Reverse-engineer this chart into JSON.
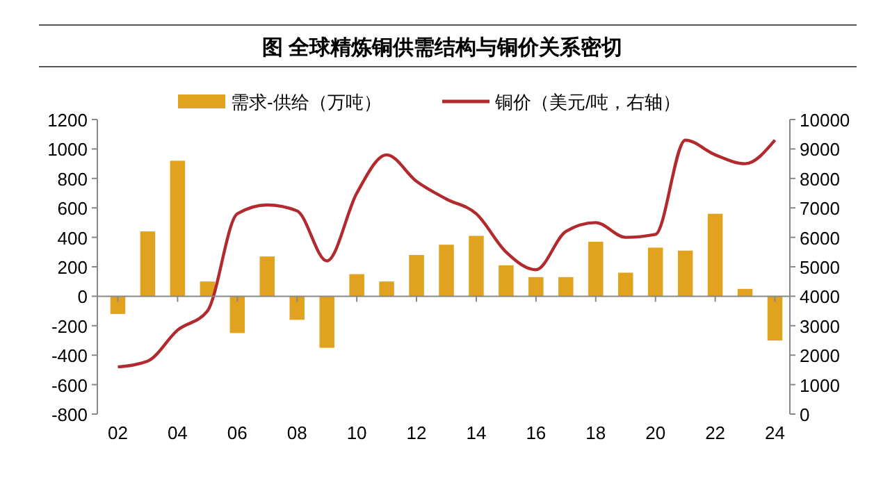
{
  "chart_data": {
    "type": "bar",
    "title": "图  全球精炼铜供需结构与铜价关系密切",
    "categories": [
      "02",
      null,
      "04",
      null,
      "06",
      null,
      "08",
      null,
      "10",
      null,
      "12",
      null,
      "14",
      null,
      "16",
      null,
      "18",
      null,
      "20",
      null,
      "22",
      null,
      "24"
    ],
    "series": [
      {
        "name": "需求-供给（万吨）",
        "color": "#e0a21f",
        "values": [
          -120,
          440,
          920,
          100,
          -250,
          270,
          -160,
          -350,
          150,
          100,
          280,
          350,
          410,
          210,
          130,
          130,
          370,
          160,
          330,
          310,
          560,
          50,
          -300
        ]
      },
      {
        "name": "铜价（美元/吨，右轴）",
        "type": "line",
        "axis": "y2",
        "color": "#b22a2e",
        "values": [
          1600,
          1800,
          2850,
          3500,
          6800,
          7100,
          6900,
          5200,
          7500,
          8800,
          7900,
          7300,
          6800,
          5500,
          4900,
          6200,
          6500,
          6000,
          6100,
          9300,
          8800,
          8500,
          9300
        ]
      }
    ],
    "ylim": [
      -800,
      1200
    ],
    "yticks": [
      -800,
      -600,
      -400,
      -200,
      0,
      200,
      400,
      600,
      800,
      1000,
      1200
    ],
    "y2lim": [
      0,
      10000
    ],
    "y2ticks": [
      0,
      1000,
      2000,
      3000,
      4000,
      5000,
      6000,
      7000,
      8000,
      9000,
      10000
    ],
    "legend": "top"
  }
}
